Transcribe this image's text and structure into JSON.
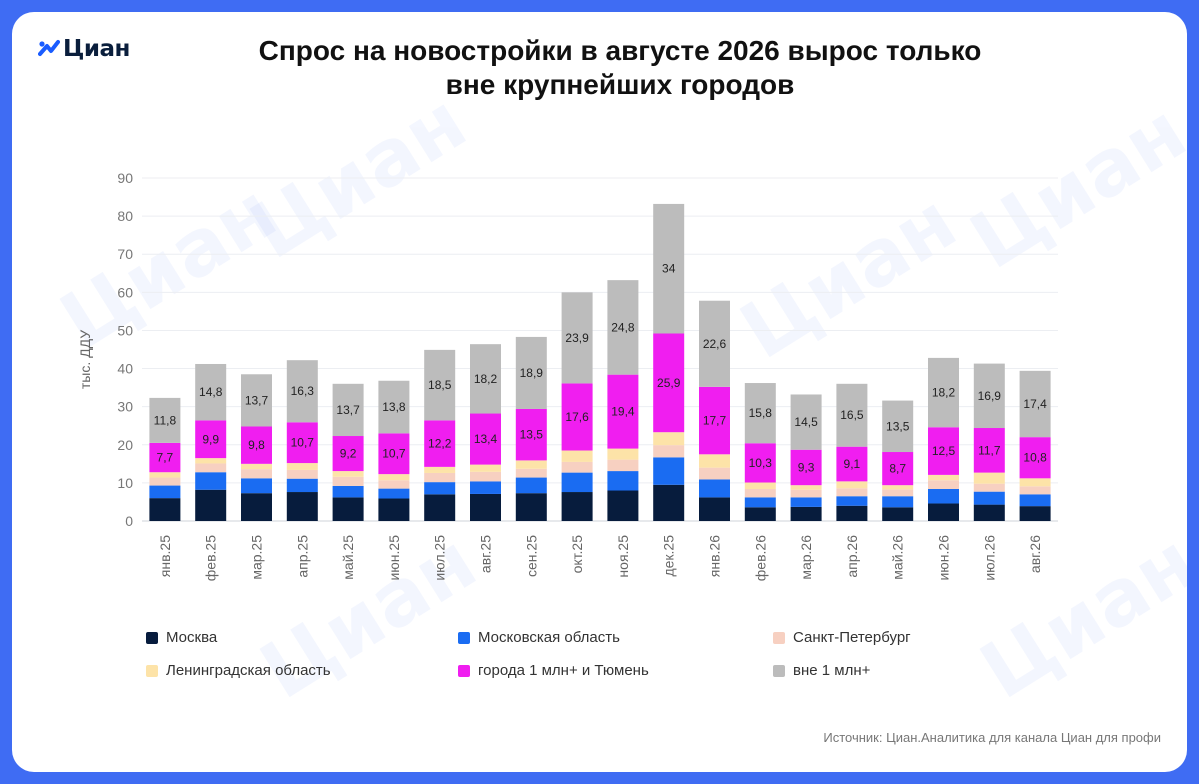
{
  "brand": {
    "name": "Циан",
    "accent": "#1a5cff"
  },
  "title_line1": "Спрос на новостройки в августе 2026 вырос только",
  "title_line2": "вне крупнейших городов",
  "watermark": "Циан",
  "source": "Источник: Циан.Аналитика для канала Циан для профи",
  "chart_data": {
    "type": "bar",
    "stacked": true,
    "ylabel": "тыс. ДДУ",
    "ylim": [
      0,
      90
    ],
    "yticks": [
      0,
      10,
      20,
      30,
      40,
      50,
      60,
      70,
      80,
      90
    ],
    "grid": true,
    "legend_position": "bottom",
    "categories": [
      "янв.25",
      "фев.25",
      "мар.25",
      "апр.25",
      "май.25",
      "июн.25",
      "июл.25",
      "авг.25",
      "сен.25",
      "окт.25",
      "ноя.25",
      "дек.25",
      "янв.26",
      "фев.26",
      "мар.26",
      "апр.26",
      "май.26",
      "июн.26",
      "июл.26",
      "авг.26"
    ],
    "series": [
      {
        "name": "Москва",
        "color": "#071c3d",
        "values": [
          6.0,
          8.2,
          7.3,
          7.6,
          6.2,
          5.9,
          7.0,
          7.1,
          7.3,
          7.6,
          8.0,
          9.5,
          6.2,
          3.6,
          3.7,
          4.0,
          3.6,
          4.6,
          4.3,
          3.9
        ]
      },
      {
        "name": "Московская область",
        "color": "#1a6cf2",
        "values": [
          3.3,
          4.6,
          3.9,
          3.5,
          3.0,
          2.6,
          3.2,
          3.3,
          4.1,
          5.1,
          5.1,
          7.2,
          4.7,
          2.6,
          2.5,
          2.5,
          2.9,
          3.8,
          3.4,
          3.1
        ]
      },
      {
        "name": "Санкт-Петербург",
        "color": "#f7d0c1",
        "values": [
          2.1,
          2.3,
          2.4,
          2.3,
          2.4,
          2.2,
          2.4,
          2.5,
          2.3,
          2.8,
          3.0,
          3.2,
          3.1,
          2.2,
          2.0,
          2.1,
          1.8,
          2.3,
          2.1,
          2.1
        ]
      },
      {
        "name": "Ленинградская область",
        "color": "#fde3a8",
        "values": [
          1.4,
          1.4,
          1.4,
          1.8,
          1.5,
          1.6,
          1.6,
          1.9,
          2.2,
          3.0,
          2.9,
          3.4,
          3.5,
          1.7,
          1.2,
          1.8,
          1.1,
          1.4,
          2.9,
          2.1
        ]
      },
      {
        "name": "города 1 млн+ и Тюмень",
        "color": "#f01ef0",
        "values": [
          7.7,
          9.9,
          9.8,
          10.7,
          9.2,
          10.7,
          12.2,
          13.4,
          13.5,
          17.6,
          19.4,
          25.9,
          17.7,
          10.3,
          9.3,
          9.1,
          8.7,
          12.5,
          11.7,
          10.8
        ]
      },
      {
        "name": "вне 1 млн+",
        "color": "#bcbcbc",
        "values": [
          11.8,
          14.8,
          13.7,
          16.3,
          13.7,
          13.8,
          18.5,
          18.2,
          18.9,
          23.9,
          24.8,
          34,
          22.6,
          15.8,
          14.5,
          16.5,
          13.5,
          18.2,
          16.9,
          17.4
        ]
      }
    ],
    "labeled_series": [
      4,
      5
    ],
    "value_labels": [
      [
        "7,7",
        "9,9",
        "9,8",
        "10,7",
        "9,2",
        "10,7",
        "12,2",
        "13,4",
        "13,5",
        "17,6",
        "19,4",
        "25,9",
        "17,7",
        "10,3",
        "9,3",
        "9,1",
        "8,7",
        "12,5",
        "11,7",
        "10,8"
      ],
      [
        "11,8",
        "14,8",
        "13,7",
        "16,3",
        "13,7",
        "13,8",
        "18,5",
        "18,2",
        "18,9",
        "23,9",
        "24,8",
        "34",
        "22,6",
        "15,8",
        "14,5",
        "16,5",
        "13,5",
        "18,2",
        "16,9",
        "17,4"
      ]
    ]
  }
}
